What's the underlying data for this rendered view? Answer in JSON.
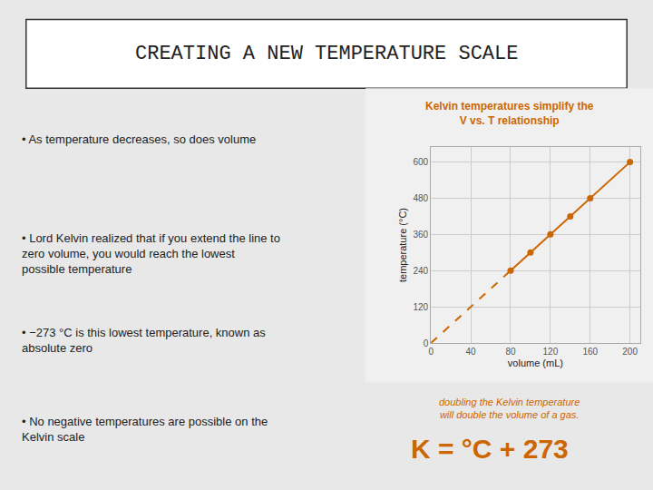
{
  "chart_data": {
    "type": "line",
    "title": "CREATING A NEW TEMPERATURE SCALE",
    "subtitle": "Kelvin temperatures simplify the\nV vs. T relationship",
    "x_label": "volume (mL)",
    "y_label": "temperature (°C)",
    "annotations": [
      "• As temperature decreases, so does volume",
      "• Lord Kelvin realized that if you extend the line to\nzero volume, you would reach the lowest\npossible temperature",
      "• −273 °C is this lowest temperature, known as\nabsolute zero",
      "• No negative temperatures are possible on the\nKelvin scale",
      "doubling the Kelvin temperature\nwill double the volume of a gas.",
      "K = °C + 273"
    ],
    "series": [
      {
        "x": [
          0,
          80
        ],
        "values": [
          0,
          240
        ],
        "color": "#cc6600",
        "line_style": "dashed"
      },
      {
        "x": [
          80,
          100,
          120,
          140,
          160,
          200
        ],
        "values": [
          240,
          300,
          360,
          420,
          480,
          600
        ],
        "color": "#cc6600",
        "line_style": "solid",
        "marker": "circle"
      }
    ],
    "xlim": [
      0,
      210
    ],
    "ylim": [
      0,
      650
    ],
    "xticks": [
      0,
      40,
      80,
      120,
      160,
      200
    ],
    "yticks": [
      0,
      120,
      240,
      360,
      480,
      600
    ],
    "grid": true
  }
}
